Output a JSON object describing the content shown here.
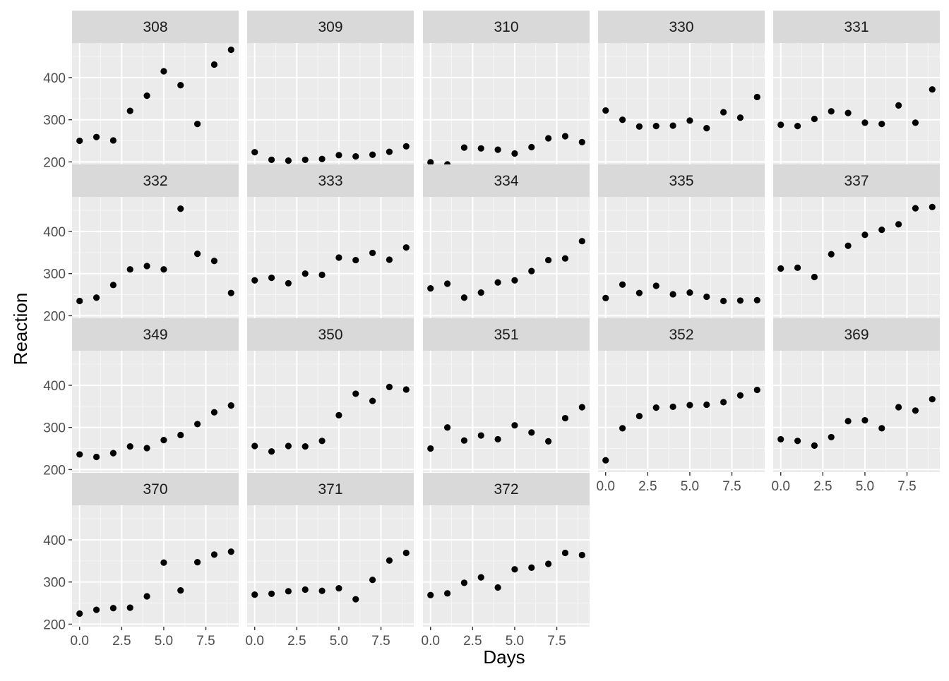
{
  "chart_data": {
    "type": "scatter",
    "facet_layout": "wrap",
    "xlabel": "Days",
    "ylabel": "Reaction",
    "xlim": [
      -0.45,
      9.45
    ],
    "ylim": [
      194,
      482
    ],
    "x_ticks": [
      0,
      2.5,
      5,
      7.5
    ],
    "x_tick_labels": [
      "0.0",
      "2.5",
      "5.0",
      "7.5"
    ],
    "y_ticks": [
      200,
      300,
      400
    ],
    "y_tick_labels": [
      "200",
      "300",
      "400"
    ],
    "grid": true,
    "x": [
      0,
      1,
      2,
      3,
      4,
      5,
      6,
      7,
      8,
      9
    ],
    "colors": {
      "panel_bg": "#ebebeb",
      "strip_bg": "#d9d9d9",
      "grid_major": "#ffffff",
      "point": "#000000"
    },
    "panels": [
      {
        "label": "308",
        "values": [
          250,
          259,
          251,
          321,
          357,
          415,
          382,
          290,
          431,
          466
        ]
      },
      {
        "label": "309",
        "values": [
          223,
          205,
          203,
          205,
          207,
          216,
          213,
          217,
          224,
          237
        ]
      },
      {
        "label": "310",
        "values": [
          199,
          194,
          234,
          232,
          229,
          220,
          235,
          256,
          261,
          247
        ]
      },
      {
        "label": "330",
        "values": [
          322,
          300,
          284,
          285,
          286,
          298,
          280,
          318,
          305,
          354
        ]
      },
      {
        "label": "331",
        "values": [
          288,
          285,
          302,
          320,
          316,
          293,
          290,
          334,
          293,
          372
        ]
      },
      {
        "label": "332",
        "values": [
          235,
          243,
          273,
          310,
          318,
          310,
          454,
          347,
          330,
          254
        ]
      },
      {
        "label": "333",
        "values": [
          284,
          290,
          277,
          300,
          297,
          338,
          332,
          349,
          333,
          362
        ]
      },
      {
        "label": "334",
        "values": [
          265,
          276,
          243,
          255,
          279,
          284,
          306,
          332,
          336,
          377
        ]
      },
      {
        "label": "335",
        "values": [
          242,
          274,
          254,
          271,
          251,
          255,
          245,
          235,
          236,
          237
        ]
      },
      {
        "label": "337",
        "values": [
          312,
          314,
          292,
          346,
          366,
          392,
          404,
          417,
          455,
          458
        ]
      },
      {
        "label": "349",
        "values": [
          236,
          230,
          239,
          255,
          251,
          270,
          282,
          308,
          336,
          352
        ]
      },
      {
        "label": "350",
        "values": [
          256,
          243,
          256,
          255,
          268,
          329,
          380,
          363,
          396,
          390
        ]
      },
      {
        "label": "351",
        "values": [
          250,
          300,
          269,
          281,
          272,
          305,
          288,
          267,
          322,
          348
        ]
      },
      {
        "label": "352",
        "values": [
          222,
          298,
          327,
          347,
          349,
          353,
          354,
          360,
          376,
          389
        ]
      },
      {
        "label": "369",
        "values": [
          272,
          268,
          257,
          277,
          315,
          317,
          298,
          348,
          340,
          367
        ]
      },
      {
        "label": "370",
        "values": [
          225,
          234,
          238,
          239,
          266,
          346,
          280,
          347,
          365,
          372
        ]
      },
      {
        "label": "371",
        "values": [
          270,
          272,
          278,
          282,
          279,
          285,
          259,
          305,
          351,
          369
        ]
      },
      {
        "label": "372",
        "values": [
          269,
          273,
          298,
          311,
          287,
          330,
          334,
          343,
          369,
          364
        ]
      }
    ]
  }
}
